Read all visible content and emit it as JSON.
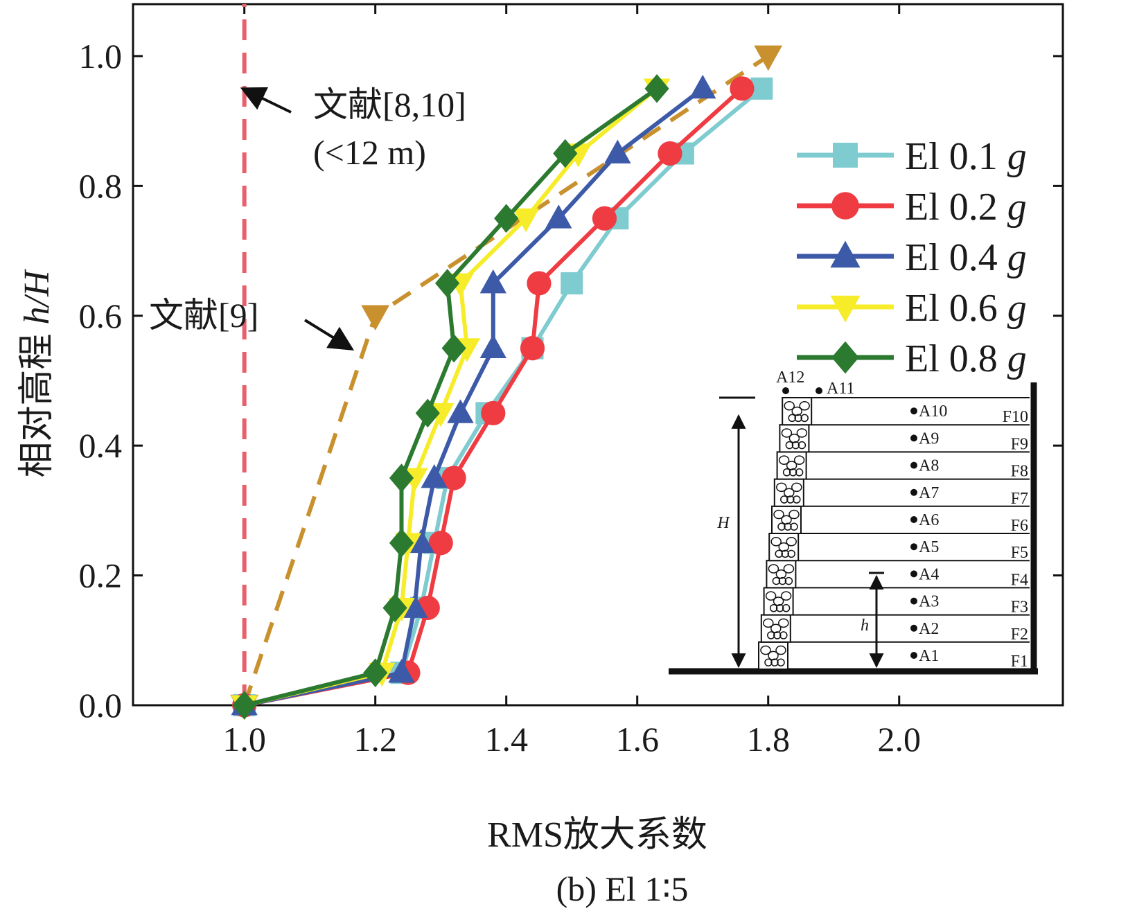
{
  "chart_data": {
    "type": "line",
    "xlabel": "RMS放大系数",
    "ylabel": "相对高程 h/H",
    "caption": "(b) El 1∶5",
    "xlim": [
      0.83,
      2.25
    ],
    "ylim": [
      0.0,
      1.08
    ],
    "xticks": [
      "1.0",
      "1.2",
      "1.4",
      "1.6",
      "1.8",
      "2.0"
    ],
    "yticks": [
      "0.0",
      "0.2",
      "0.4",
      "0.6",
      "0.8",
      "1.0"
    ],
    "legend_position": "right",
    "series": [
      {
        "name": "El 0.1g",
        "label_main": "El 0.1",
        "label_it": "g",
        "color": "#7ecbd0",
        "marker": "square",
        "x": [
          1.0,
          1.24,
          1.27,
          1.29,
          1.31,
          1.37,
          1.44,
          1.5,
          1.57,
          1.67,
          1.79
        ],
        "y": [
          0.0,
          0.05,
          0.15,
          0.25,
          0.35,
          0.45,
          0.55,
          0.65,
          0.75,
          0.85,
          0.95
        ]
      },
      {
        "name": "El 0.2g",
        "label_main": "El 0.2",
        "label_it": "g",
        "color": "#ef3b42",
        "marker": "circle",
        "x": [
          1.0,
          1.25,
          1.28,
          1.3,
          1.32,
          1.38,
          1.44,
          1.45,
          1.55,
          1.65,
          1.76
        ],
        "y": [
          0.0,
          0.05,
          0.15,
          0.25,
          0.35,
          0.45,
          0.55,
          0.65,
          0.75,
          0.85,
          0.95
        ]
      },
      {
        "name": "El 0.4g",
        "label_main": "El 0.4",
        "label_it": "g",
        "color": "#3c5aa8",
        "marker": "triangle-up",
        "x": [
          1.0,
          1.24,
          1.26,
          1.27,
          1.29,
          1.33,
          1.38,
          1.38,
          1.48,
          1.57,
          1.7
        ],
        "y": [
          0.0,
          0.05,
          0.15,
          0.25,
          0.35,
          0.45,
          0.55,
          0.65,
          0.75,
          0.85,
          0.95
        ]
      },
      {
        "name": "El 0.6g",
        "label_main": "El 0.6",
        "label_it": "g",
        "color": "#f7ec2a",
        "marker": "triangle-down",
        "x": [
          1.0,
          1.21,
          1.24,
          1.25,
          1.26,
          1.3,
          1.34,
          1.33,
          1.43,
          1.51,
          1.63
        ],
        "y": [
          0.0,
          0.05,
          0.15,
          0.25,
          0.35,
          0.45,
          0.55,
          0.65,
          0.75,
          0.85,
          0.95
        ]
      },
      {
        "name": "El 0.8g",
        "label_main": "El 0.8",
        "label_it": "g",
        "color": "#2b7a2f",
        "marker": "diamond",
        "x": [
          1.0,
          1.2,
          1.23,
          1.24,
          1.24,
          1.28,
          1.32,
          1.31,
          1.4,
          1.49,
          1.63
        ],
        "y": [
          0.0,
          0.05,
          0.15,
          0.25,
          0.35,
          0.45,
          0.55,
          0.65,
          0.75,
          0.85,
          0.95
        ]
      }
    ],
    "reference_lines": [
      {
        "label": "文献[8,10]",
        "sublabel": "(<12 m)",
        "color": "#e8606b",
        "style": "dashed",
        "x": [
          1.0,
          1.0
        ],
        "y": [
          0.0,
          1.08
        ]
      },
      {
        "label": "文献[9]",
        "color": "#c9902e",
        "style": "dashed",
        "marker": "triangle-down",
        "x": [
          1.0,
          1.2,
          1.8
        ],
        "y": [
          0.0,
          0.6,
          1.0
        ]
      }
    ],
    "inset": {
      "sensors": [
        "A1",
        "A2",
        "A3",
        "A4",
        "A5",
        "A6",
        "A7",
        "A8",
        "A9",
        "A10"
      ],
      "top_sensors": [
        "A12",
        "A11"
      ],
      "layers": [
        "F1",
        "F2",
        "F3",
        "F4",
        "F5",
        "F6",
        "F7",
        "F8",
        "F9",
        "F10"
      ],
      "height_label": "H",
      "local_height_label": "h"
    }
  }
}
